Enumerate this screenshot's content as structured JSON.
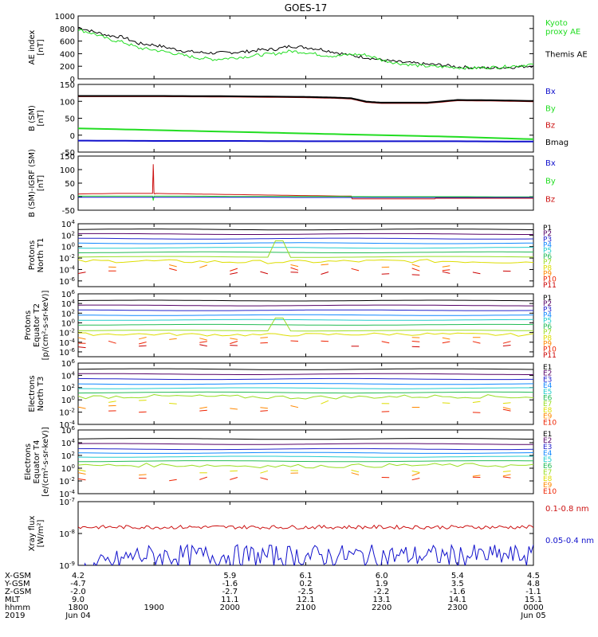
{
  "title": "GOES-17",
  "colors": {
    "black": "#000000",
    "green": "#22dd22",
    "blue": "#1111cc",
    "red": "#cc1111",
    "p1": "#000000",
    "p2": "#550066",
    "p3": "#2222cc",
    "p4": "#1188ff",
    "p5": "#22cccc",
    "p6": "#22bb55",
    "p7": "#99dd22",
    "p8": "#dddd00",
    "p9": "#ff8800",
    "p10": "#ee2200",
    "p11": "#cc0000"
  },
  "x_axis": {
    "rows": [
      {
        "label": "X-GSM",
        "values": [
          "4.2",
          "",
          "5.9",
          "6.1",
          "6.0",
          "5.4",
          "4.5"
        ]
      },
      {
        "label": "Y-GSM",
        "values": [
          "-4.7",
          "",
          "-1.6",
          "0.2",
          "1.9",
          "3.5",
          "4.8"
        ]
      },
      {
        "label": "Z-GSM",
        "values": [
          "-2.0",
          "",
          "-2.7",
          "-2.5",
          "-2.2",
          "-1.6",
          "-1.1"
        ]
      },
      {
        "label": "MLT",
        "values": [
          "9.0",
          "",
          "11.1",
          "12.1",
          "13.1",
          "14.1",
          "15.1"
        ]
      },
      {
        "label": "hhmm",
        "values": [
          "1800",
          "1900",
          "2000",
          "2100",
          "2200",
          "2300",
          "0000"
        ]
      },
      {
        "label": "2019",
        "values": [
          "Jun 04",
          "",
          "",
          "",
          "",
          "",
          "Jun 05"
        ]
      }
    ]
  },
  "chart_data": [
    {
      "type": "line",
      "ylabel": "AE index\n[nT]",
      "ylim": [
        0,
        1000
      ],
      "yticks": [
        "0",
        "200",
        "400",
        "600",
        "800",
        "1000"
      ],
      "legend": [
        {
          "name": "Kyoto\nproxy AE",
          "color": "#22dd22"
        },
        {
          "name": "Themis AE",
          "color": "#000000"
        }
      ],
      "series": [
        {
          "name": "Themis AE",
          "color": "#000000",
          "x": [
            0,
            0.2,
            0.4,
            0.6,
            0.8,
            1.0,
            1.2,
            1.4,
            1.6,
            1.8,
            2.0,
            2.2,
            2.4,
            2.6,
            2.8,
            3.0,
            3.2,
            3.4,
            3.6,
            3.8,
            4.0,
            4.2,
            4.4,
            4.6,
            4.8,
            5.0,
            5.2,
            5.4,
            5.6,
            5.8,
            6.0
          ],
          "y": [
            820,
            750,
            690,
            660,
            560,
            540,
            490,
            440,
            420,
            410,
            420,
            430,
            460,
            470,
            520,
            500,
            470,
            420,
            370,
            340,
            300,
            270,
            250,
            230,
            220,
            190,
            180,
            170,
            180,
            190,
            210
          ]
        },
        {
          "name": "Kyoto\nproxy AE",
          "color": "#22dd22",
          "x": [
            0,
            0.2,
            0.4,
            0.6,
            0.8,
            1.0,
            1.2,
            1.4,
            1.6,
            1.8,
            2.0,
            2.2,
            2.4,
            2.6,
            2.8,
            3.0,
            3.2,
            3.4,
            3.6,
            3.8,
            4.0,
            4.2,
            4.4,
            4.6,
            4.8,
            5.0,
            5.2,
            5.4,
            5.6,
            5.8,
            6.0
          ],
          "y": [
            780,
            720,
            630,
            580,
            490,
            460,
            420,
            370,
            330,
            310,
            330,
            350,
            380,
            400,
            440,
            420,
            380,
            360,
            390,
            380,
            300,
            250,
            220,
            200,
            190,
            180,
            170,
            180,
            190,
            210,
            230
          ]
        }
      ]
    },
    {
      "type": "line",
      "ylabel": "B (SM)\n[nT]",
      "ylim": [
        -50,
        150
      ],
      "yticks": [
        "-50",
        "0",
        "50",
        "100",
        "150"
      ],
      "legend": [
        {
          "name": "Bx",
          "color": "#1111cc"
        },
        {
          "name": "By",
          "color": "#22dd22"
        },
        {
          "name": "Bz",
          "color": "#cc1111"
        },
        {
          "name": "Bmag",
          "color": "#000000"
        }
      ],
      "series": [
        {
          "name": "Bz",
          "color": "#cc1111",
          "x": [
            0,
            1,
            2,
            3,
            3.2,
            3.4,
            3.6,
            3.8,
            4.0,
            4.4,
            4.6,
            5.0,
            5.5,
            6.0
          ],
          "y": [
            115,
            115,
            114,
            112,
            111,
            110,
            108,
            98,
            95,
            95,
            95,
            103,
            102,
            100
          ]
        },
        {
          "name": "Bmag",
          "color": "#000000",
          "x": [
            0,
            1,
            2,
            3,
            3.2,
            3.4,
            3.6,
            3.8,
            4.0,
            4.4,
            4.6,
            5.0,
            5.5,
            6.0
          ],
          "y": [
            116,
            116,
            115,
            113,
            112,
            111,
            109,
            99,
            96,
            96,
            96,
            104,
            103,
            101
          ]
        },
        {
          "name": "By",
          "color": "#22dd22",
          "x": [
            0,
            1,
            2,
            3,
            4,
            5,
            6
          ],
          "y": [
            20,
            15,
            10,
            5,
            0,
            -5,
            -12
          ]
        },
        {
          "name": "Bx",
          "color": "#1111cc",
          "x": [
            0,
            1,
            2,
            3,
            4,
            5,
            6
          ],
          "y": [
            -16,
            -17,
            -17,
            -18,
            -18,
            -18,
            -19
          ]
        }
      ]
    },
    {
      "type": "line",
      "ylabel": "B (SM)-IGRF (SM)\n[nT]",
      "ylim": [
        -50,
        150
      ],
      "yticks": [
        "-50",
        "0",
        "50",
        "100",
        "150"
      ],
      "legend": [
        {
          "name": "Bx",
          "color": "#1111cc"
        },
        {
          "name": "By",
          "color": "#22dd22"
        },
        {
          "name": "Bz",
          "color": "#cc1111"
        }
      ],
      "series": [
        {
          "name": "Bz",
          "color": "#cc1111",
          "x": [
            0,
            0.5,
            0.98,
            0.99,
            1.0,
            1.01,
            1.02,
            1.5,
            2,
            2.5,
            3,
            3.6,
            3.61,
            4.0,
            4.7,
            4.71,
            5.0,
            6.0
          ],
          "y": [
            10,
            12,
            12,
            120,
            12,
            10,
            12,
            10,
            8,
            6,
            4,
            2,
            -8,
            -8,
            -8,
            -6,
            -6,
            -6
          ]
        },
        {
          "name": "By",
          "color": "#22dd22",
          "x": [
            0,
            0.98,
            0.99,
            1.0,
            1.01,
            1.5,
            2,
            3,
            4,
            5,
            6
          ],
          "y": [
            2,
            2,
            -14,
            2,
            2,
            2,
            1,
            1,
            0,
            0,
            -1
          ]
        },
        {
          "name": "Bx",
          "color": "#1111cc",
          "x": [
            0,
            1,
            2,
            3,
            4,
            5,
            6
          ],
          "y": [
            -2,
            -2,
            -2,
            -3,
            -3,
            -3,
            -3
          ]
        }
      ]
    },
    {
      "type": "line",
      "ylog": true,
      "ylabel": "Protons\nNorth T1",
      "ylim": [
        -7,
        4
      ],
      "yticks": [
        "10^4",
        "10^2",
        "10^0",
        "10^-2",
        "10^-4",
        "10^-6"
      ],
      "legend": [
        "P1",
        "P2",
        "P3",
        "P4",
        "P5",
        "P6",
        "P7",
        "P8",
        "P9",
        "P10",
        "P11"
      ],
      "levels": [
        3.0,
        2.2,
        1.4,
        0.6,
        -0.2,
        -1.0,
        -1.8,
        -2.6,
        -3.4,
        -4.0,
        -4.6
      ],
      "spike": {
        "x": 2.65,
        "y": 1.0
      }
    },
    {
      "type": "line",
      "ylog": true,
      "ylabel": "Protons\nEquator T2\n[p/(cm²-s-sr-keV)]",
      "ylim": [
        -7,
        6
      ],
      "yticks": [
        "10^6",
        "10^4",
        "10^2",
        "10^0",
        "10^-2",
        "10^-4",
        "10^-6"
      ],
      "legend": [
        "P1",
        "P2",
        "P3",
        "P4",
        "P5",
        "P6",
        "P7",
        "P8",
        "P9",
        "P10",
        "P11"
      ],
      "levels": [
        4.6,
        3.6,
        2.6,
        1.6,
        0.6,
        -0.4,
        -1.6,
        -2.4,
        -3.2,
        -4.0,
        -4.8
      ],
      "spike": {
        "x": 2.65,
        "y": 1.0
      }
    },
    {
      "type": "line",
      "ylog": true,
      "ylabel": "Electrons\nNorth T3",
      "ylim": [
        -4,
        6
      ],
      "yticks": [
        "10^6",
        "10^4",
        "10^2",
        "10^0",
        "10^-2",
        "10^-4"
      ],
      "legend": [
        "E1",
        "E2",
        "E3",
        "E4",
        "E5",
        "E6",
        "E7",
        "E8",
        "E9",
        "E10"
      ],
      "levels": [
        5.0,
        4.2,
        3.4,
        2.6,
        1.9,
        1.2,
        0.5,
        -0.4,
        -1.2,
        -1.8
      ]
    },
    {
      "type": "line",
      "ylog": true,
      "ylabel": "Electrons\nEquator T4\n[e/(cm²-s-sr-keV)]",
      "ylim": [
        -4,
        6
      ],
      "yticks": [
        "10^6",
        "10^4",
        "10^2",
        "10^0",
        "10^-2",
        "10^-4"
      ],
      "legend": [
        "E1",
        "E2",
        "E3",
        "E4",
        "E5",
        "E6",
        "E7",
        "E8",
        "E9",
        "E10"
      ],
      "levels": [
        4.6,
        3.8,
        3.0,
        2.4,
        1.8,
        1.1,
        0.4,
        -0.5,
        -1.0,
        -1.6
      ]
    },
    {
      "type": "line",
      "ylog": true,
      "ylabel": "Xray flux\n[W/m²]",
      "ylim": [
        -9,
        -7
      ],
      "yticks": [
        "10^-7",
        "10^-8",
        "10^-9"
      ],
      "legend": [
        {
          "name": "0.1-0.8 nm",
          "color": "#cc1111"
        },
        {
          "name": "0.05-0.4 nm",
          "color": "#1111cc"
        }
      ],
      "series": [
        {
          "name": "0.1-0.8 nm",
          "color": "#cc1111",
          "level": -7.8
        },
        {
          "name": "0.05-0.4 nm",
          "color": "#1111cc",
          "level": -8.7
        }
      ]
    }
  ]
}
